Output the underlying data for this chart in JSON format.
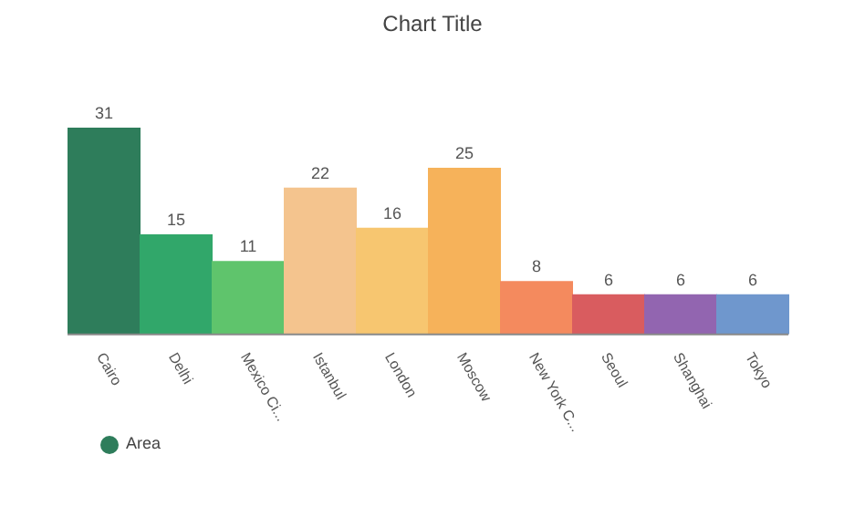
{
  "chart_data": {
    "type": "bar",
    "title": "Chart Title",
    "categories": [
      "Cairo",
      "Delhi",
      "Mexico Ci...",
      "Istanbul",
      "London",
      "Moscow",
      "New York C...",
      "Seoul",
      "Shanghai",
      "Tokyo"
    ],
    "series": [
      {
        "name": "Area",
        "color": "#2e7d5b",
        "colors": [
          "#2e7d5b",
          "#31a76a",
          "#5fc46c",
          "#f4c48e",
          "#f7c670",
          "#f6b25a",
          "#f48a5e",
          "#d95c5f",
          "#9265b0",
          "#6f97cd"
        ],
        "values": [
          31,
          15,
          11,
          22,
          16,
          25,
          8,
          6,
          6,
          6
        ]
      }
    ],
    "data_labels": true,
    "legend": "bottom left",
    "grid": false
  }
}
